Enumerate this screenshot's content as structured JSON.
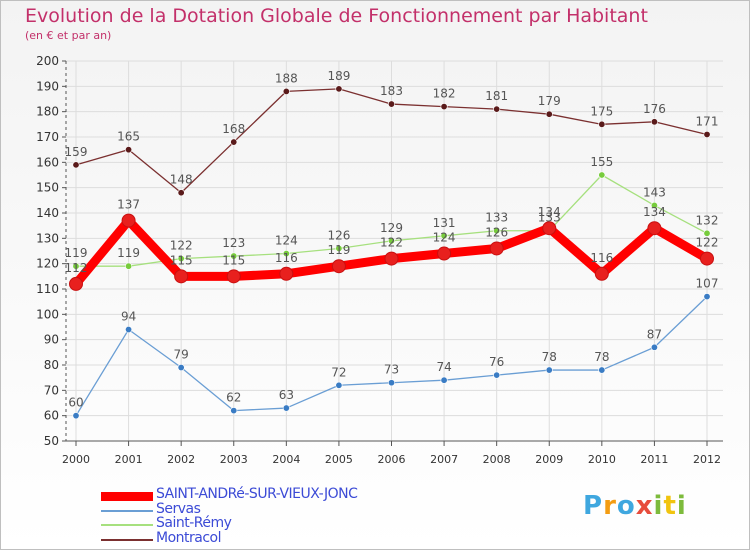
{
  "colors": {
    "title": "#c3306a",
    "grid": "#dddddd",
    "axis": "#555555",
    "label": "#555555",
    "legend_text": "#3c4bd6"
  },
  "chart_data": {
    "type": "line",
    "title": "Evolution de la Dotation Globale de Fonctionnement par Habitant",
    "subtitle": "(en € et par an)",
    "xlabel": "",
    "ylabel": "",
    "ylim": [
      50,
      200
    ],
    "ytick_step": 10,
    "grid": true,
    "legend_position": "bottom-left",
    "x": [
      "2000",
      "2001",
      "2002",
      "2003",
      "2004",
      "2005",
      "2006",
      "2007",
      "2008",
      "2009",
      "2010",
      "2011",
      "2012"
    ],
    "series": [
      {
        "name": "SAINT-ANDRé-SUR-VIEUX-JONC",
        "color": "#ff0000",
        "marker": "#e8201e",
        "width": "thick",
        "values": [
          112,
          137,
          115,
          115,
          116,
          119,
          122,
          124,
          126,
          134,
          116,
          134,
          122
        ]
      },
      {
        "name": "Servas",
        "color": "#6a9ed4",
        "marker": "#3a7cc4",
        "width": "thin",
        "values": [
          60,
          94,
          79,
          62,
          63,
          72,
          73,
          74,
          76,
          78,
          78,
          87,
          107
        ]
      },
      {
        "name": "Saint-Rémy",
        "color": "#a6e07e",
        "marker": "#77cc3c",
        "width": "thin",
        "values": [
          119,
          119,
          122,
          123,
          124,
          126,
          129,
          131,
          133,
          133,
          155,
          143,
          132
        ]
      },
      {
        "name": "Montracol",
        "color": "#7b3030",
        "marker": "#5a1a1a",
        "width": "thin",
        "values": [
          159,
          165,
          148,
          168,
          188,
          189,
          183,
          182,
          181,
          179,
          175,
          176,
          171
        ]
      }
    ]
  },
  "logo": {
    "letters": [
      "P",
      "r",
      "o",
      "x",
      "i",
      "t",
      "i"
    ],
    "colors": [
      "#3fa7df",
      "#f39c12",
      "#3fa7df",
      "#e74c3c",
      "#7dbb3c",
      "#f1c40f",
      "#7dbb3c"
    ]
  }
}
